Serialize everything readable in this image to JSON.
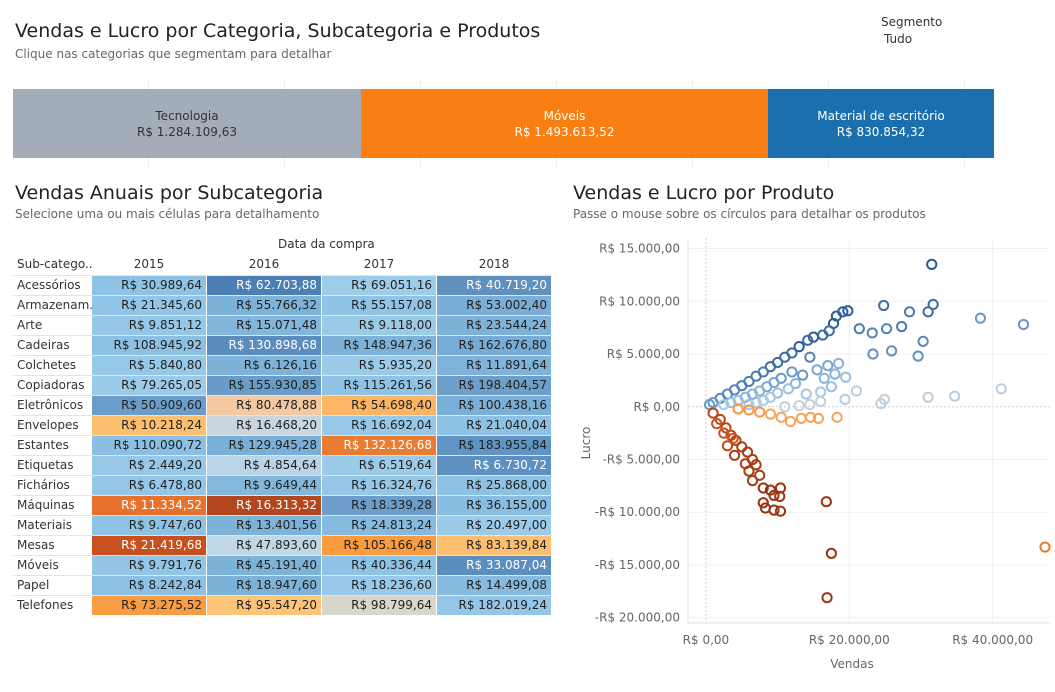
{
  "header": {
    "title": "Vendas e Lucro por Categoria, Subcategoria e Produtos",
    "subtitle": "Clique nas categorias que segmentam para detalhar"
  },
  "filter": {
    "label": "Segmento",
    "value": "Tudo"
  },
  "categories": [
    {
      "name": "Tecnologia",
      "value": "R$ 1.284.109,63",
      "color": "#a3acb9",
      "text_color": "#333333"
    },
    {
      "name": "Móveis",
      "value": "R$ 1.493.613,52",
      "color": "#f97f12",
      "text_color": "#ffffff"
    },
    {
      "name": "Material de escritório",
      "value": "R$ 830.854,32",
      "color": "#1b6fad",
      "text_color": "#ffffff"
    }
  ],
  "heatmap": {
    "title": "Vendas Anuais por Subcategoria",
    "subtitle": "Selecione uma ou mais células para detalhamento",
    "column_group": "Data da compra",
    "row_header": "Sub-catego..",
    "years": [
      "2015",
      "2016",
      "2017",
      "2018"
    ],
    "rows": [
      {
        "label": "Acessórios",
        "cells": [
          {
            "v": "R$ 30.989,64",
            "c": "#8ec3e6",
            "t": "#222"
          },
          {
            "v": "R$ 62.703,88",
            "c": "#4c80b5",
            "t": "#fff"
          },
          {
            "v": "R$ 69.051,16",
            "c": "#9ecde9",
            "t": "#222"
          },
          {
            "v": "R$ 40.719,20",
            "c": "#5f90be",
            "t": "#fff"
          }
        ]
      },
      {
        "label": "Armazenam..",
        "cells": [
          {
            "v": "R$ 21.345,60",
            "c": "#92c5e7",
            "t": "#222"
          },
          {
            "v": "R$ 55.766,32",
            "c": "#7eb3d9",
            "t": "#222"
          },
          {
            "v": "R$ 55.157,08",
            "c": "#90c4e6",
            "t": "#222"
          },
          {
            "v": "R$ 53.002,40",
            "c": "#7aaed6",
            "t": "#222"
          }
        ]
      },
      {
        "label": "Arte",
        "cells": [
          {
            "v": "R$ 9.851,12",
            "c": "#94c7e8",
            "t": "#222"
          },
          {
            "v": "R$ 15.071,48",
            "c": "#82b6dc",
            "t": "#222"
          },
          {
            "v": "R$ 9.118,00",
            "c": "#9ccbe8",
            "t": "#222"
          },
          {
            "v": "R$ 23.544,24",
            "c": "#7eb2d8",
            "t": "#222"
          }
        ]
      },
      {
        "label": "Cadeiras",
        "cells": [
          {
            "v": "R$ 108.945,92",
            "c": "#8cc1e4",
            "t": "#222"
          },
          {
            "v": "R$ 130.898,68",
            "c": "#5a8dbd",
            "t": "#fff"
          },
          {
            "v": "R$ 148.947,36",
            "c": "#7db3da",
            "t": "#222"
          },
          {
            "v": "R$ 162.676,80",
            "c": "#77acd6",
            "t": "#222"
          }
        ]
      },
      {
        "label": "Colchetes",
        "cells": [
          {
            "v": "R$ 5.840,80",
            "c": "#96c8e8",
            "t": "#222"
          },
          {
            "v": "R$ 6.126,16",
            "c": "#7eb3d9",
            "t": "#222"
          },
          {
            "v": "R$ 5.935,20",
            "c": "#9ccbe9",
            "t": "#222"
          },
          {
            "v": "R$ 11.891,64",
            "c": "#7fb3d9",
            "t": "#222"
          }
        ]
      },
      {
        "label": "Copiadoras",
        "cells": [
          {
            "v": "R$ 79.265,05",
            "c": "#9bcbe9",
            "t": "#222"
          },
          {
            "v": "R$ 155.930,85",
            "c": "#6a9cc9",
            "t": "#222"
          },
          {
            "v": "R$ 115.261,56",
            "c": "#8fc3e5",
            "t": "#222"
          },
          {
            "v": "R$ 198.404,57",
            "c": "#6e9fcb",
            "t": "#222"
          }
        ]
      },
      {
        "label": "Eletrônicos",
        "cells": [
          {
            "v": "R$ 50.909,60",
            "c": "#6b9dca",
            "t": "#222"
          },
          {
            "v": "R$ 80.478,88",
            "c": "#f2c9a0",
            "t": "#222"
          },
          {
            "v": "R$ 54.698,40",
            "c": "#fcb565",
            "t": "#222"
          },
          {
            "v": "R$ 100.438,16",
            "c": "#7aafd7",
            "t": "#222"
          }
        ]
      },
      {
        "label": "Envelopes",
        "cells": [
          {
            "v": "R$ 10.218,24",
            "c": "#fbbf70",
            "t": "#222"
          },
          {
            "v": "R$ 16.468,20",
            "c": "#c9d5df",
            "t": "#222"
          },
          {
            "v": "R$ 16.692,04",
            "c": "#97c8e8",
            "t": "#222"
          },
          {
            "v": "R$ 21.040,04",
            "c": "#8ec2e4",
            "t": "#222"
          }
        ]
      },
      {
        "label": "Estantes",
        "cells": [
          {
            "v": "R$ 110.090,72",
            "c": "#8bc0e4",
            "t": "#222"
          },
          {
            "v": "R$ 129.945,28",
            "c": "#7ab0d8",
            "t": "#222"
          },
          {
            "v": "R$ 132.126,68",
            "c": "#ea7c32",
            "t": "#fff"
          },
          {
            "v": "R$ 183.955,84",
            "c": "#6094c4",
            "t": "#222"
          }
        ]
      },
      {
        "label": "Etiquetas",
        "cells": [
          {
            "v": "R$ 2.449,20",
            "c": "#97c8e8",
            "t": "#222"
          },
          {
            "v": "R$ 4.854,64",
            "c": "#b9d4e6",
            "t": "#222"
          },
          {
            "v": "R$ 6.519,64",
            "c": "#9ccbe9",
            "t": "#222"
          },
          {
            "v": "R$ 6.730,72",
            "c": "#5d90c1",
            "t": "#fff"
          }
        ]
      },
      {
        "label": "Fichários",
        "cells": [
          {
            "v": "R$ 6.478,80",
            "c": "#94c6e7",
            "t": "#222"
          },
          {
            "v": "R$ 9.649,44",
            "c": "#83b7dc",
            "t": "#222"
          },
          {
            "v": "R$ 16.324,76",
            "c": "#96c7e7",
            "t": "#222"
          },
          {
            "v": "R$ 25.868,00",
            "c": "#8ec2e4",
            "t": "#222"
          }
        ]
      },
      {
        "label": "Máquinas",
        "cells": [
          {
            "v": "R$ 11.334,52",
            "c": "#e8722b",
            "t": "#fff"
          },
          {
            "v": "R$ 16.313,32",
            "c": "#b3461c",
            "t": "#fff"
          },
          {
            "v": "R$ 18.339,28",
            "c": "#6d9ecb",
            "t": "#222"
          },
          {
            "v": "R$ 36.155,00",
            "c": "#88bde2",
            "t": "#222"
          }
        ]
      },
      {
        "label": "Materiais",
        "cells": [
          {
            "v": "R$ 9.747,60",
            "c": "#8fc3e5",
            "t": "#222"
          },
          {
            "v": "R$ 13.401,56",
            "c": "#7eb3d9",
            "t": "#222"
          },
          {
            "v": "R$ 24.813,24",
            "c": "#86bbdf",
            "t": "#222"
          },
          {
            "v": "R$ 20.497,00",
            "c": "#9ccbe9",
            "t": "#222"
          }
        ]
      },
      {
        "label": "Mesas",
        "cells": [
          {
            "v": "R$ 21.419,68",
            "c": "#c8501f",
            "t": "#fff"
          },
          {
            "v": "R$ 47.893,60",
            "c": "#c0d7e6",
            "t": "#222"
          },
          {
            "v": "R$ 105.166,48",
            "c": "#f99b3e",
            "t": "#222"
          },
          {
            "v": "R$ 83.139,84",
            "c": "#fcbf70",
            "t": "#222"
          }
        ]
      },
      {
        "label": "Móveis",
        "cells": [
          {
            "v": "R$ 9.791,76",
            "c": "#92c5e6",
            "t": "#222"
          },
          {
            "v": "R$ 45.191,40",
            "c": "#7eb3d9",
            "t": "#222"
          },
          {
            "v": "R$ 40.336,44",
            "c": "#8fc3e5",
            "t": "#222"
          },
          {
            "v": "R$ 33.087,04",
            "c": "#5a8ebf",
            "t": "#fff"
          }
        ]
      },
      {
        "label": "Papel",
        "cells": [
          {
            "v": "R$ 8.242,84",
            "c": "#8dc1e4",
            "t": "#222"
          },
          {
            "v": "R$ 18.947,60",
            "c": "#7eb3d9",
            "t": "#222"
          },
          {
            "v": "R$ 18.236,60",
            "c": "#98c9e8",
            "t": "#222"
          },
          {
            "v": "R$ 14.499,08",
            "c": "#86bbdf",
            "t": "#222"
          }
        ]
      },
      {
        "label": "Telefones",
        "cells": [
          {
            "v": "R$ 73.275,52",
            "c": "#f99d42",
            "t": "#222"
          },
          {
            "v": "R$ 95.547,20",
            "c": "#fcc479",
            "t": "#222"
          },
          {
            "v": "R$ 98.799,64",
            "c": "#d9d6cc",
            "t": "#222"
          },
          {
            "v": "R$ 182.019,24",
            "c": "#94c6e7",
            "t": "#222"
          }
        ]
      }
    ]
  },
  "scatter": {
    "title": "Vendas e Lucro por Produto",
    "subtitle": "Passe o mouse sobre os círculos para detalhar os produtos",
    "xlabel": "Vendas",
    "ylabel": "Lucro",
    "x_ticks": [
      "R$ 0,00",
      "R$ 20.000,00",
      "R$ 40.000,00"
    ],
    "y_ticks": [
      "R$ 15.000,00",
      "R$ 10.000,00",
      "R$ 5.000,00",
      "R$ 0,00",
      "-R$ 5.000,00",
      "-R$ 10.000,00",
      "-R$ 15.000,00",
      "-R$ 20.000,00"
    ]
  },
  "chart_data": {
    "type": "scatter",
    "title": "Vendas e Lucro por Produto",
    "xlabel": "Vendas",
    "ylabel": "Lucro",
    "xlim": [
      -2500,
      48000
    ],
    "ylim": [
      -20500,
      16000
    ],
    "x_tick_values": [
      0,
      20000,
      40000
    ],
    "y_tick_values": [
      15000,
      10000,
      5000,
      0,
      -5000,
      -10000,
      -15000,
      -20000
    ],
    "grid": true,
    "color_scale": [
      "#a2c2df",
      "#2f5f94",
      "#f8a458",
      "#9c3413"
    ],
    "points": [
      {
        "x": 31500,
        "y": 13500,
        "c": "#2e5d8f"
      },
      {
        "x": 31700,
        "y": 9700,
        "c": "#3d6ea1"
      },
      {
        "x": 31000,
        "y": 9000,
        "c": "#3d6ea1"
      },
      {
        "x": 24800,
        "y": 9600,
        "c": "#3e70a2"
      },
      {
        "x": 38300,
        "y": 8400,
        "c": "#6c98c4"
      },
      {
        "x": 44300,
        "y": 7800,
        "c": "#6c98c4"
      },
      {
        "x": 28400,
        "y": 9000,
        "c": "#4a7cae"
      },
      {
        "x": 27300,
        "y": 7600,
        "c": "#4a7cae"
      },
      {
        "x": 30300,
        "y": 6200,
        "c": "#5c8ab9"
      },
      {
        "x": 29600,
        "y": 4800,
        "c": "#6592be"
      },
      {
        "x": 25900,
        "y": 5300,
        "c": "#6592be"
      },
      {
        "x": 25200,
        "y": 7400,
        "c": "#5584b5"
      },
      {
        "x": 23200,
        "y": 7000,
        "c": "#5584b5"
      },
      {
        "x": 23300,
        "y": 5000,
        "c": "#6592be"
      },
      {
        "x": 21400,
        "y": 7400,
        "c": "#4a7cae"
      },
      {
        "x": 19800,
        "y": 9100,
        "c": "#2f5f94"
      },
      {
        "x": 19100,
        "y": 9000,
        "c": "#2f5f94"
      },
      {
        "x": 18200,
        "y": 8600,
        "c": "#2f5f94"
      },
      {
        "x": 17800,
        "y": 7900,
        "c": "#2f5f94"
      },
      {
        "x": 17200,
        "y": 7200,
        "c": "#3c6da0"
      },
      {
        "x": 16300,
        "y": 6800,
        "c": "#3c6da0"
      },
      {
        "x": 15000,
        "y": 6600,
        "c": "#2f5f94"
      },
      {
        "x": 14200,
        "y": 6300,
        "c": "#3c6da0"
      },
      {
        "x": 13000,
        "y": 5700,
        "c": "#2f5f94"
      },
      {
        "x": 12000,
        "y": 5100,
        "c": "#3c6da0"
      },
      {
        "x": 11000,
        "y": 4700,
        "c": "#3c6da0"
      },
      {
        "x": 10000,
        "y": 4200,
        "c": "#3c6da0"
      },
      {
        "x": 9000,
        "y": 3800,
        "c": "#3c6da0"
      },
      {
        "x": 8000,
        "y": 3300,
        "c": "#4c7db0"
      },
      {
        "x": 7000,
        "y": 2900,
        "c": "#4c7db0"
      },
      {
        "x": 6000,
        "y": 2400,
        "c": "#4c7db0"
      },
      {
        "x": 5000,
        "y": 2000,
        "c": "#4c7db0"
      },
      {
        "x": 4000,
        "y": 1600,
        "c": "#5888b8"
      },
      {
        "x": 3000,
        "y": 1200,
        "c": "#5888b8"
      },
      {
        "x": 2000,
        "y": 800,
        "c": "#5888b8"
      },
      {
        "x": 1000,
        "y": 400,
        "c": "#6a97c4"
      },
      {
        "x": 500,
        "y": 200,
        "c": "#6a97c4"
      },
      {
        "x": 14500,
        "y": 4700,
        "c": "#5584b5"
      },
      {
        "x": 15500,
        "y": 3500,
        "c": "#7aa6cf"
      },
      {
        "x": 16500,
        "y": 2700,
        "c": "#8ab3d6"
      },
      {
        "x": 17000,
        "y": 3900,
        "c": "#7aa6cf"
      },
      {
        "x": 18500,
        "y": 4100,
        "c": "#8ab3d6"
      },
      {
        "x": 18000,
        "y": 3100,
        "c": "#8ab3d6"
      },
      {
        "x": 19500,
        "y": 2800,
        "c": "#9bbfdf"
      },
      {
        "x": 17500,
        "y": 1900,
        "c": "#9bbfdf"
      },
      {
        "x": 16000,
        "y": 1400,
        "c": "#a9c8e4"
      },
      {
        "x": 14000,
        "y": 1200,
        "c": "#a9c8e4"
      },
      {
        "x": 12500,
        "y": 2200,
        "c": "#8ab3d6"
      },
      {
        "x": 11500,
        "y": 1700,
        "c": "#9bbfdf"
      },
      {
        "x": 10000,
        "y": 1300,
        "c": "#9bbfdf"
      },
      {
        "x": 9000,
        "y": 900,
        "c": "#a9c8e4"
      },
      {
        "x": 8000,
        "y": 600,
        "c": "#a9c8e4"
      },
      {
        "x": 7000,
        "y": 400,
        "c": "#a9c8e4"
      },
      {
        "x": 6000,
        "y": 200,
        "c": "#a9c8e4"
      },
      {
        "x": 13500,
        "y": 3000,
        "c": "#6a97c4"
      },
      {
        "x": 12000,
        "y": 3300,
        "c": "#6a97c4"
      },
      {
        "x": 10500,
        "y": 2700,
        "c": "#6a97c4"
      },
      {
        "x": 9500,
        "y": 2300,
        "c": "#7aa6cf"
      },
      {
        "x": 8500,
        "y": 1900,
        "c": "#7aa6cf"
      },
      {
        "x": 7500,
        "y": 1500,
        "c": "#8ab3d6"
      },
      {
        "x": 6500,
        "y": 1200,
        "c": "#8ab3d6"
      },
      {
        "x": 5500,
        "y": 900,
        "c": "#8ab3d6"
      },
      {
        "x": 4500,
        "y": 600,
        "c": "#9bbfdf"
      },
      {
        "x": 3500,
        "y": 400,
        "c": "#9bbfdf"
      },
      {
        "x": 2500,
        "y": 200,
        "c": "#a9c8e4"
      },
      {
        "x": 41200,
        "y": 1700,
        "c": "#b8cee0"
      },
      {
        "x": 34700,
        "y": 1000,
        "c": "#b8cee0"
      },
      {
        "x": 31000,
        "y": 900,
        "c": "#b8cee0"
      },
      {
        "x": 24900,
        "y": 700,
        "c": "#c2d0da"
      },
      {
        "x": 24400,
        "y": 300,
        "c": "#c2d0da"
      },
      {
        "x": 19400,
        "y": 700,
        "c": "#b8cee0"
      },
      {
        "x": 21000,
        "y": 1500,
        "c": "#b8cee0"
      },
      {
        "x": 16000,
        "y": 500,
        "c": "#c2d0da"
      },
      {
        "x": 14500,
        "y": 200,
        "c": "#c2d0da"
      },
      {
        "x": 13000,
        "y": 100,
        "c": "#c2d0da"
      },
      {
        "x": 11000,
        "y": 0,
        "c": "#c2d0da"
      },
      {
        "x": 18300,
        "y": -1000,
        "c": "#f8a458"
      },
      {
        "x": 15700,
        "y": -1100,
        "c": "#f8a458"
      },
      {
        "x": 14600,
        "y": -1000,
        "c": "#f8a458"
      },
      {
        "x": 13300,
        "y": -1100,
        "c": "#f8a458"
      },
      {
        "x": 11800,
        "y": -1400,
        "c": "#f8a458"
      },
      {
        "x": 10500,
        "y": -1000,
        "c": "#f8a458"
      },
      {
        "x": 9000,
        "y": -700,
        "c": "#f8a458"
      },
      {
        "x": 7500,
        "y": -500,
        "c": "#f6984a"
      },
      {
        "x": 6000,
        "y": -300,
        "c": "#f6984a"
      },
      {
        "x": 4500,
        "y": -200,
        "c": "#f6984a"
      },
      {
        "x": 53000,
        "y": -13300,
        "c": "#e67b29"
      },
      {
        "x": 1000,
        "y": -600,
        "c": "#b8491a"
      },
      {
        "x": 2000,
        "y": -1200,
        "c": "#b8491a"
      },
      {
        "x": 2800,
        "y": -2000,
        "c": "#b8491a"
      },
      {
        "x": 3500,
        "y": -2700,
        "c": "#b8491a"
      },
      {
        "x": 4200,
        "y": -3200,
        "c": "#b8491a"
      },
      {
        "x": 5000,
        "y": -3800,
        "c": "#a83e16"
      },
      {
        "x": 5800,
        "y": -4300,
        "c": "#a83e16"
      },
      {
        "x": 6500,
        "y": -5000,
        "c": "#a83e16"
      },
      {
        "x": 7000,
        "y": -5500,
        "c": "#a83e16"
      },
      {
        "x": 7500,
        "y": -6500,
        "c": "#a83e16"
      },
      {
        "x": 8000,
        "y": -7700,
        "c": "#9c3413"
      },
      {
        "x": 9000,
        "y": -7900,
        "c": "#9c3413"
      },
      {
        "x": 9500,
        "y": -8400,
        "c": "#9c3413"
      },
      {
        "x": 8000,
        "y": -9100,
        "c": "#9c3413"
      },
      {
        "x": 8300,
        "y": -9600,
        "c": "#9c3413"
      },
      {
        "x": 10400,
        "y": -9900,
        "c": "#9c3413"
      },
      {
        "x": 9500,
        "y": -9800,
        "c": "#9c3413"
      },
      {
        "x": 10300,
        "y": -8500,
        "c": "#9c3413"
      },
      {
        "x": 10400,
        "y": -7700,
        "c": "#9c3413"
      },
      {
        "x": 16800,
        "y": -9000,
        "c": "#9c3413"
      },
      {
        "x": 17500,
        "y": -13900,
        "c": "#9c3413"
      },
      {
        "x": 16900,
        "y": -18100,
        "c": "#9c3413"
      },
      {
        "x": 3000,
        "y": -3700,
        "c": "#b8491a"
      },
      {
        "x": 4000,
        "y": -4600,
        "c": "#a83e16"
      },
      {
        "x": 5500,
        "y": -5400,
        "c": "#a83e16"
      },
      {
        "x": 6000,
        "y": -6100,
        "c": "#a83e16"
      },
      {
        "x": 6500,
        "y": -7000,
        "c": "#a83e16"
      },
      {
        "x": 1500,
        "y": -1600,
        "c": "#c85521"
      },
      {
        "x": 2500,
        "y": -2500,
        "c": "#c85521"
      },
      {
        "x": 3800,
        "y": -3000,
        "c": "#c85521"
      }
    ]
  }
}
